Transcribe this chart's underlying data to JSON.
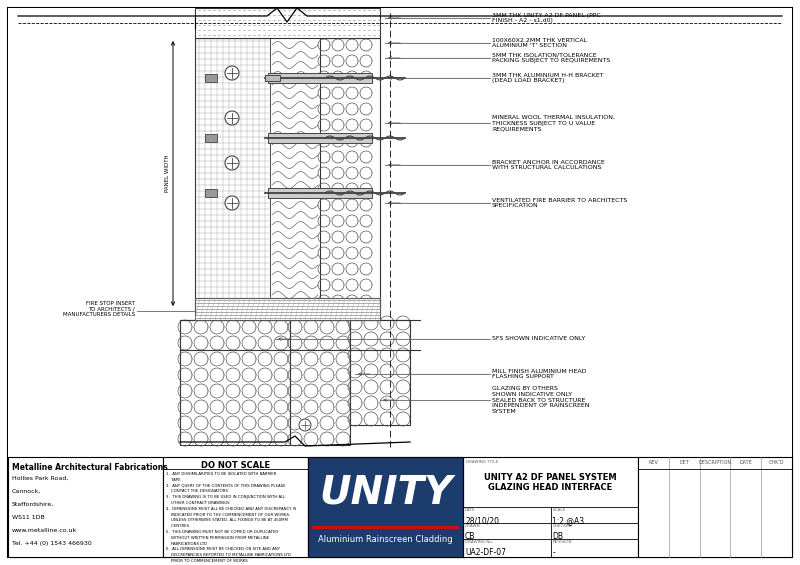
{
  "bg_color": "#ffffff",
  "border_color": "#000000",
  "title": "UNITY A2 DF PANEL SYSTEM\nGLAZING HEAD INTERFACE",
  "drawing_no": "UA2-DF-07",
  "scale": "1:2 @A3",
  "date": "28/10/20",
  "drawn": "CB",
  "checked": "DB",
  "revision": "-",
  "company_name": "Metalline Architectural Fabrications",
  "company_addr1": "Hollies Park Road,",
  "company_addr2": "Cannock,",
  "company_addr3": "Staffordshire,",
  "company_addr4": "WS11 1DB",
  "company_addr5": "www.metalline.co.uk",
  "company_addr6": "Tel. +44 (0) 1543 466930",
  "unity_logo_bg": "#1c3c6e",
  "unity_logo_text": "UNITY",
  "unity_logo_subtitle": "Aluminium Rainscreen Cladding",
  "unity_accent_color": "#cc1111",
  "annot0": "3MM THK UNITY A2 DF PANEL (PPC\nFINISH - A2 - s1,d0)",
  "annot1": "100X60X2.2MM THK VERTICAL\nALUMINIUM 'T' SECTION",
  "annot2": "5MM THK ISOLATION/TOLERANCE\nPACKING SUBJECT TO REQUIREMENTS",
  "annot3": "3MM THK ALUMINIUM H-H BRACKET\n(DEAD LOAD BRACKET)",
  "annot4": "MINERAL WOOL THERMAL INSULATION,\nTHICKNESS SUBJECT TO U VALUE\nREQUIREMENTS",
  "annot5": "BRACKET ANCHOR IN ACCORDANCE\nWITH STRUCTURAL CALCULATIONS",
  "annot6": "VENTILATED FIRE BARRIER TO ARCHITECTS\nSPECIFICATION",
  "annot7": "SFS SHOWN INDICATIVE ONLY",
  "annot8": "MILL FINISH ALUMINIUM HEAD\nFLASHING SUPPORT",
  "annot9": "GLAZING BY OTHERS\nSHOWN INDICATIVE ONLY\nSEALED BACK TO STRUCTURE\nINDEPENDENT OF RAINSCREEN\nSYSTEM",
  "left_annot0": "FIRE STOP INSERT\nTO ARCHITECTS /\nMANUFACTURERS DETAILS",
  "left_annot1": "PANEL WIDTH",
  "do_not_scale": "DO NOT SCALE",
  "notes": "1.  ANY DISSIMILARITIES TO BE ISOLATED WITH BARRIER\n    TAPE\n2.  ANY QUERY OF THE CONTENTS OF THIS DRAWING PLEASE\n    CONTACT THE DESIGNATORS\n3.  THIS DRAWING IS TO BE USED IN CONJUNCTION WITH ALL\n    OTHER CONTRACT DRAWINGS\n4.  DIMENSIONS MUST ALL BE CHECKED AND ANY DISCREPANCY IS\n    INDICATED PRIOR TO THE COMMENCEMENT OF OUR WORKS.\n    UNLESS OTHERWISE STATED. ALL FIXINGS TO BE AT 450MM\n    CENTRES\n5.  THIS DRAWING MUST NOT BE COPIED OR DUPLICATED\n    WITHOUT WRITTEN PERMISSION FROM METALLINE\n    FABRICATIONS LTD\n6.  ALL DIMENSIONS MUST BE CHECKED ON SITE AND ANY\n    DISCREPANCIES REPORTED TO METALLINE FABRICATIONS LTD\n    PRIOR TO COMMENCEMENT OF WORKS",
  "drawing_title_label": "DRAWING TITLE",
  "date_label": "DATE",
  "scale_label": "SCALE",
  "drawn_label": "DRAWN",
  "checked_label": "CHECKED",
  "drwno_label": "DRAWING No.",
  "rev_label": "REVISION",
  "rev_headers": [
    "REV",
    "DET",
    "DESCRIPTION",
    "DATE",
    "CHK'D"
  ]
}
